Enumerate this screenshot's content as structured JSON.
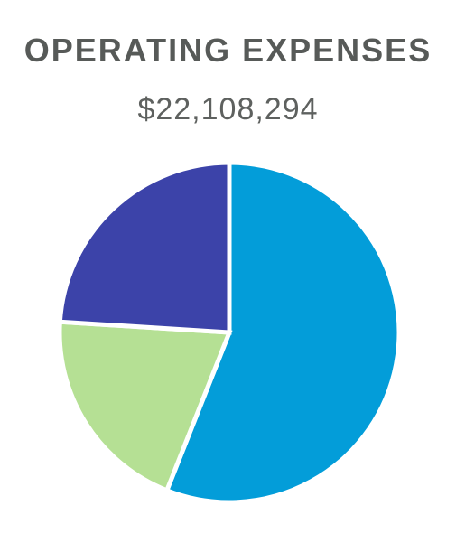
{
  "chart_data": {
    "type": "pie",
    "title": "OPERATING EXPENSES",
    "subtitle": "$22,108,294",
    "slices": [
      {
        "value": 56,
        "color": "#039dd9"
      },
      {
        "value": 20,
        "color": "#b5e094"
      },
      {
        "value": 24,
        "color": "#3c43a9"
      }
    ],
    "start_angle_deg": 0,
    "direction": "clockwise",
    "slice_border_color": "#ffffff",
    "legend": "none",
    "data_labels": "none"
  }
}
